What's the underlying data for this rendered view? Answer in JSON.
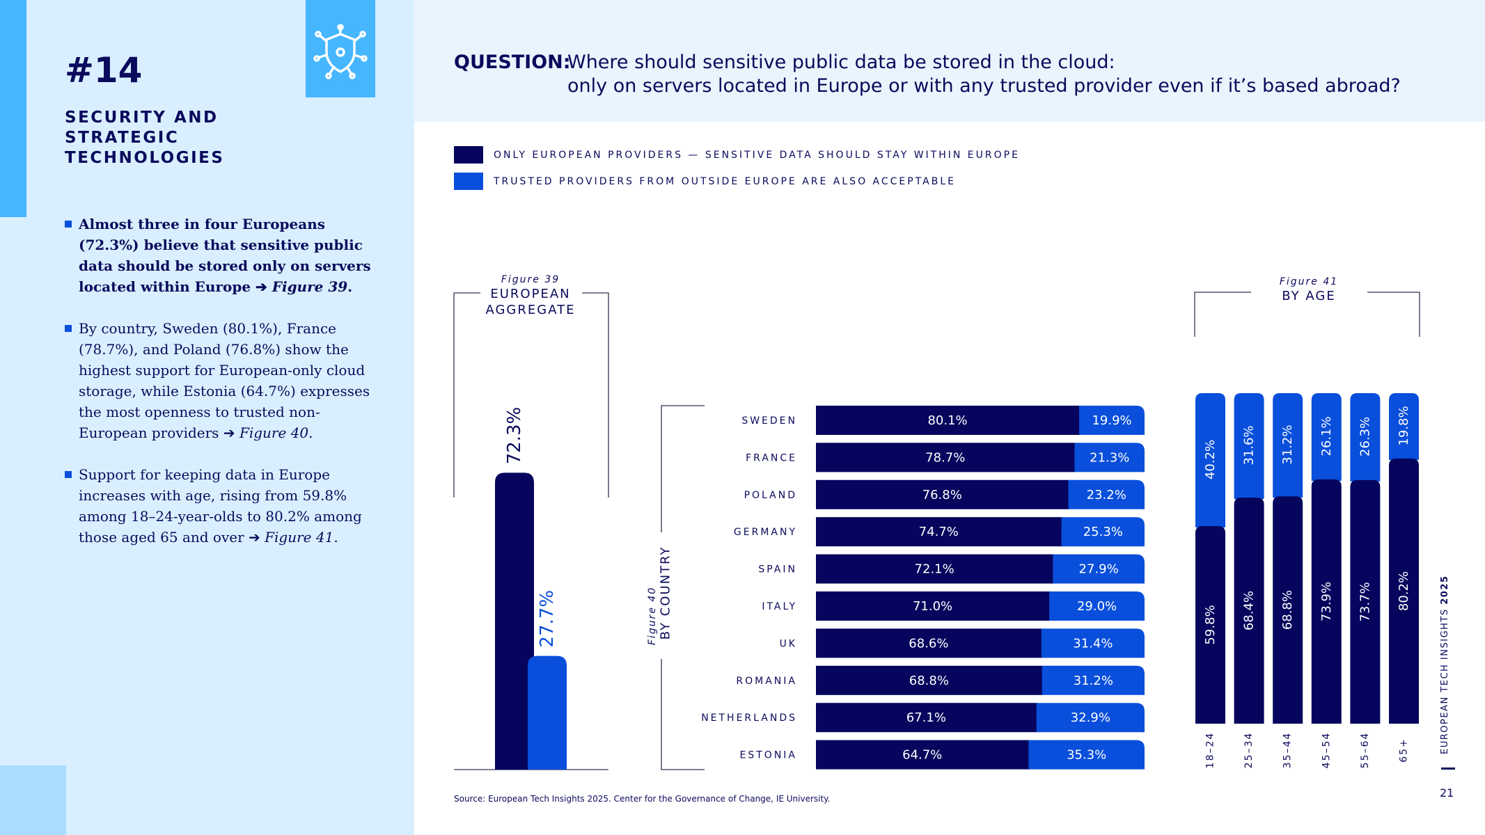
{
  "section": {
    "number": "#14",
    "title": "SECURITY AND STRATEGIC TECHNOLOGIES"
  },
  "icon": "shield-network-icon",
  "colors": {
    "europe_only": "#05055e",
    "trusted_outside": "#0a4fdb",
    "accent": "#45b6ff",
    "panel": "#d9efff"
  },
  "bullets": [
    {
      "lead": "Almost three in four Europeans (72.3%) believe that sensitive public data should be stored only on servers located within Europe",
      "arrow": "➔",
      "ref": "Figure 39",
      "end": "."
    },
    {
      "lead": "By country, Sweden (80.1%), France (78.7%), and Poland (76.8%) show the highest support for European-only cloud storage, while Estonia (64.7%) expresses the most openness to trusted non-European providers",
      "arrow": "➔",
      "ref": "Figure 40",
      "end": "."
    },
    {
      "lead": "Support for keeping data in Europe increases with age, rising from 59.8% among 18–24-year-olds to 80.2% among those aged 65 and over",
      "arrow": "➔",
      "ref": "Figure 41",
      "end": "."
    }
  ],
  "question": {
    "label": "QUESTION:",
    "line1": "Where should sensitive public data be stored in the cloud:",
    "line2": "only on servers located in Europe or with any trusted provider even if it’s based abroad?"
  },
  "legend": [
    {
      "text": "ONLY EUROPEAN PROVIDERS — SENSITIVE DATA SHOULD STAY WITHIN EUROPE",
      "color": "#05055e"
    },
    {
      "text": "TRUSTED PROVIDERS FROM OUTSIDE EUROPE ARE ALSO ACCEPTABLE",
      "color": "#0a4fdb"
    }
  ],
  "chart_data": [
    {
      "type": "bar",
      "figure": "Figure 39",
      "title": "EUROPEAN AGGREGATE",
      "series": [
        {
          "name": "ONLY EUROPEAN PROVIDERS — SENSITIVE DATA SHOULD STAY WITHIN EUROPE",
          "values": [
            72.3
          ],
          "labels": [
            "72.3%"
          ]
        },
        {
          "name": "TRUSTED PROVIDERS FROM OUTSIDE EUROPE ARE ALSO ACCEPTABLE",
          "values": [
            27.7
          ],
          "labels": [
            "27.7%"
          ]
        }
      ],
      "ylim": [
        0,
        100
      ]
    },
    {
      "type": "bar",
      "orientation": "horizontal",
      "stacked": true,
      "figure": "Figure 40",
      "title": "BY COUNTRY",
      "categories": [
        "SWEDEN",
        "FRANCE",
        "POLAND",
        "GERMANY",
        "SPAIN",
        "ITALY",
        "UK",
        "ROMANIA",
        "NETHERLANDS",
        "ESTONIA"
      ],
      "series": [
        {
          "name": "ONLY EUROPEAN PROVIDERS — SENSITIVE DATA SHOULD STAY WITHIN EUROPE",
          "values": [
            80.1,
            78.7,
            76.8,
            74.7,
            72.1,
            71.0,
            68.6,
            68.8,
            67.1,
            64.7
          ],
          "labels": [
            "80.1%",
            "78.7%",
            "76.8%",
            "74.7%",
            "72.1%",
            "71.0%",
            "68.6%",
            "68.8%",
            "67.1%",
            "64.7%"
          ]
        },
        {
          "name": "TRUSTED PROVIDERS FROM OUTSIDE EUROPE ARE ALSO ACCEPTABLE",
          "values": [
            19.9,
            21.3,
            23.2,
            25.3,
            27.9,
            29.0,
            31.4,
            31.2,
            32.9,
            35.3
          ],
          "labels": [
            "19.9%",
            "21.3%",
            "23.2%",
            "25.3%",
            "27.9%",
            "29.0%",
            "31.4%",
            "31.2%",
            "32.9%",
            "35.3%"
          ]
        }
      ],
      "xlim": [
        0,
        100
      ]
    },
    {
      "type": "bar",
      "stacked": true,
      "figure": "Figure 41",
      "title": "BY AGE",
      "categories": [
        "18–24",
        "25–34",
        "35–44",
        "45–54",
        "55–64",
        "65+"
      ],
      "series": [
        {
          "name": "ONLY EUROPEAN PROVIDERS — SENSITIVE DATA SHOULD STAY WITHIN EUROPE",
          "values": [
            59.8,
            68.4,
            68.8,
            73.9,
            73.7,
            80.2
          ],
          "labels": [
            "59.8%",
            "68.4%",
            "68.8%",
            "73.9%",
            "73.7%",
            "80.2%"
          ]
        },
        {
          "name": "TRUSTED PROVIDERS FROM OUTSIDE EUROPE ARE ALSO ACCEPTABLE",
          "values": [
            40.2,
            31.6,
            31.2,
            26.1,
            26.3,
            19.8
          ],
          "labels": [
            "40.2%",
            "31.6%",
            "31.2%",
            "26.1%",
            "26.3%",
            "19.8%"
          ]
        }
      ],
      "ylim": [
        0,
        100
      ]
    }
  ],
  "source": "Source: European Tech Insights 2025. Center for the Governance of Change, IE University.",
  "footer": {
    "caption_prefix": "EUROPEAN TECH INSIGHTS",
    "caption_year": "2025",
    "page_number": "21"
  }
}
